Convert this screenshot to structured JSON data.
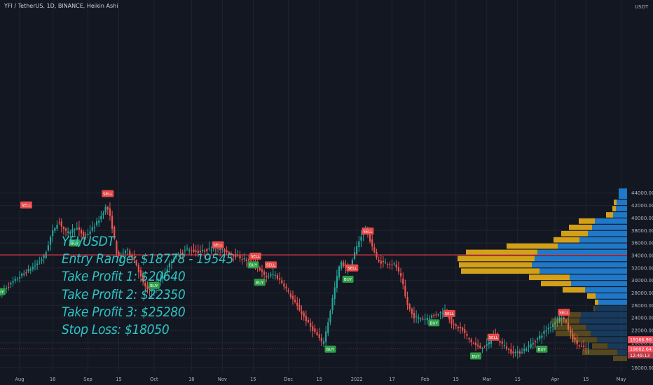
{
  "header": {
    "symbol_title": "YFI / TetherUS, 1D, BINANCE, Heikin Ashi",
    "currency": "USDT"
  },
  "colors": {
    "background": "#131722",
    "grid": "#1f2430",
    "bull": "#26a69a",
    "bear": "#ef5350",
    "profile_yellow": "#d4a017",
    "profile_blue": "#1f78c8",
    "hline": "#f23645",
    "overlay_text": "#2ec4c4",
    "buy_badge": "#2e9e48",
    "sell_badge": "#e64a4a"
  },
  "overlay_text": [
    "YFI/USDT",
    "Entry Range: $18778 - 19545",
    "Take Profit 1: $20640",
    "Take Profit 2: $22350",
    "Take Profit 3: $25280",
    "Stop Loss: $18050"
  ],
  "chart_data": {
    "type": "candlestick",
    "chart_style": "Heikin Ashi",
    "y_axis": {
      "range": [
        15600,
        44800
      ],
      "ticks": [
        16000,
        18000,
        20000,
        22000,
        24000,
        26000,
        28000,
        30000,
        32000,
        34000,
        36000,
        38000,
        40000,
        42000,
        44000
      ],
      "tick_labels": [
        "16000.00",
        "18000.00",
        "20000.00",
        "22000.00",
        "24000.00",
        "26000.00",
        "28000.00",
        "30000.00",
        "32000.00",
        "34000.00",
        "36000.00",
        "38000.00",
        "40000.00",
        "42000.00",
        "44000.00"
      ]
    },
    "x_axis": {
      "ticks": [
        {
          "label": "Aug",
          "day": 0
        },
        {
          "label": "16",
          "day": 15
        },
        {
          "label": "Sep",
          "day": 31
        },
        {
          "label": "15",
          "day": 45
        },
        {
          "label": "Oct",
          "day": 61
        },
        {
          "label": "18",
          "day": 78
        },
        {
          "label": "Nov",
          "day": 92
        },
        {
          "label": "15",
          "day": 106
        },
        {
          "label": "Dec",
          "day": 122
        },
        {
          "label": "15",
          "day": 136
        },
        {
          "label": "2022",
          "day": 153
        },
        {
          "label": "17",
          "day": 169
        },
        {
          "label": "Feb",
          "day": 184
        },
        {
          "label": "15",
          "day": 198
        },
        {
          "label": "Mar",
          "day": 212
        },
        {
          "label": "15",
          "day": 226
        },
        {
          "label": "Apr",
          "day": 243
        },
        {
          "label": "15",
          "day": 257
        },
        {
          "label": "May",
          "day": 273
        }
      ]
    },
    "price_path": [
      [
        -9,
        27800
      ],
      [
        0,
        30500
      ],
      [
        8,
        32500
      ],
      [
        12,
        34000
      ],
      [
        15,
        37500
      ],
      [
        18,
        39500
      ],
      [
        22,
        37500
      ],
      [
        26,
        38500
      ],
      [
        30,
        37000
      ],
      [
        34,
        38500
      ],
      [
        37,
        40000
      ],
      [
        40,
        42000
      ],
      [
        42,
        39500
      ],
      [
        45,
        33500
      ],
      [
        49,
        35000
      ],
      [
        53,
        33000
      ],
      [
        56,
        30000
      ],
      [
        59,
        28200
      ],
      [
        62,
        28800
      ],
      [
        66,
        31000
      ],
      [
        70,
        33500
      ],
      [
        76,
        35000
      ],
      [
        82,
        34500
      ],
      [
        88,
        35200
      ],
      [
        93,
        34800
      ],
      [
        98,
        34000
      ],
      [
        103,
        33300
      ],
      [
        108,
        32500
      ],
      [
        112,
        30500
      ],
      [
        116,
        31000
      ],
      [
        120,
        29500
      ],
      [
        124,
        27200
      ],
      [
        128,
        25000
      ],
      [
        132,
        22800
      ],
      [
        136,
        21000
      ],
      [
        138,
        19700
      ],
      [
        140,
        22500
      ],
      [
        143,
        28000
      ],
      [
        146,
        33000
      ],
      [
        150,
        31500
      ],
      [
        153,
        35000
      ],
      [
        157,
        38500
      ],
      [
        160,
        36000
      ],
      [
        163,
        33000
      ],
      [
        167,
        32800
      ],
      [
        171,
        32500
      ],
      [
        174,
        30000
      ],
      [
        176,
        26500
      ],
      [
        179,
        24200
      ],
      [
        184,
        23800
      ],
      [
        189,
        24500
      ],
      [
        194,
        25200
      ],
      [
        197,
        22800
      ],
      [
        201,
        22200
      ],
      [
        205,
        20300
      ],
      [
        209,
        19200
      ],
      [
        213,
        19600
      ],
      [
        215,
        21400
      ],
      [
        219,
        20000
      ],
      [
        223,
        18600
      ],
      [
        227,
        18400
      ],
      [
        231,
        19300
      ],
      [
        235,
        20500
      ],
      [
        239,
        21900
      ],
      [
        243,
        23200
      ],
      [
        246,
        24200
      ],
      [
        248,
        23600
      ],
      [
        250,
        21800
      ],
      [
        253,
        20000
      ],
      [
        256,
        19200
      ],
      [
        258,
        19000
      ]
    ],
    "highlighted_level": 34100,
    "current_price": {
      "value": 19166.9,
      "label": "19166.90"
    },
    "secondary_price": {
      "value": 19002.64,
      "label": "19002.64"
    },
    "countdown": {
      "label": "12:49:13"
    },
    "signals": [
      {
        "type": "SELL",
        "day": 3,
        "price": 42100
      },
      {
        "type": "SELL",
        "day": 40,
        "price": 43900
      },
      {
        "type": "BUY",
        "day": 25,
        "price": 36000
      },
      {
        "type": "BUY",
        "day": -9,
        "price": 28200
      },
      {
        "type": "BUY",
        "day": 61,
        "price": 29200
      },
      {
        "type": "SELL",
        "day": 90,
        "price": 35700
      },
      {
        "type": "SELL",
        "day": 107,
        "price": 33900
      },
      {
        "type": "SELL",
        "day": 114,
        "price": 32500
      },
      {
        "type": "BUY",
        "day": 106,
        "price": 32500
      },
      {
        "type": "BUY",
        "day": 109,
        "price": 29700
      },
      {
        "type": "SELL",
        "day": 158,
        "price": 37900
      },
      {
        "type": "SELL",
        "day": 151,
        "price": 32000
      },
      {
        "type": "BUY",
        "day": 149,
        "price": 30200
      },
      {
        "type": "BUY",
        "day": 141,
        "price": 19000
      },
      {
        "type": "SELL",
        "day": 195,
        "price": 24700
      },
      {
        "type": "BUY",
        "day": 188,
        "price": 23200
      },
      {
        "type": "SELL",
        "day": 215,
        "price": 20900
      },
      {
        "type": "BUY",
        "day": 207,
        "price": 17900
      },
      {
        "type": "BUY",
        "day": 237,
        "price": 19000
      },
      {
        "type": "SELL",
        "day": 247,
        "price": 24900
      }
    ],
    "volume_profile": [
      {
        "low": 43000,
        "high": 44800,
        "yellow": 0,
        "blue": 12
      },
      {
        "low": 42000,
        "high": 43000,
        "yellow": 4,
        "blue": 15
      },
      {
        "low": 41000,
        "high": 42000,
        "yellow": 5,
        "blue": 16
      },
      {
        "low": 40000,
        "high": 41000,
        "yellow": 10,
        "blue": 20
      },
      {
        "low": 39000,
        "high": 40000,
        "yellow": 23,
        "blue": 46
      },
      {
        "low": 38000,
        "high": 39000,
        "yellow": 33,
        "blue": 50
      },
      {
        "low": 37000,
        "high": 38000,
        "yellow": 38,
        "blue": 56
      },
      {
        "low": 36000,
        "high": 37000,
        "yellow": 37,
        "blue": 68
      },
      {
        "low": 35000,
        "high": 36000,
        "yellow": 73,
        "blue": 99
      },
      {
        "low": 34000,
        "high": 35000,
        "yellow": 102,
        "blue": 128
      },
      {
        "low": 33000,
        "high": 34000,
        "yellow": 110,
        "blue": 132
      },
      {
        "low": 32000,
        "high": 33000,
        "yellow": 104,
        "blue": 136
      },
      {
        "low": 31000,
        "high": 32000,
        "yellow": 112,
        "blue": 125
      },
      {
        "low": 30000,
        "high": 31000,
        "yellow": 58,
        "blue": 82
      },
      {
        "low": 29000,
        "high": 30000,
        "yellow": 43,
        "blue": 80
      },
      {
        "low": 28000,
        "high": 29000,
        "yellow": 32,
        "blue": 60
      },
      {
        "low": 27000,
        "high": 28000,
        "yellow": 12,
        "blue": 45
      },
      {
        "low": 26000,
        "high": 27000,
        "yellow": 5,
        "blue": 41
      },
      {
        "low": 25000,
        "high": 26000,
        "yellow": 2,
        "blue": 46
      },
      {
        "low": 24000,
        "high": 25000,
        "yellow": 18,
        "blue": 66
      },
      {
        "low": 23000,
        "high": 24000,
        "yellow": 40,
        "blue": 68
      },
      {
        "low": 22000,
        "high": 23000,
        "yellow": 46,
        "blue": 59
      },
      {
        "low": 21000,
        "high": 22000,
        "yellow": 50,
        "blue": 52
      },
      {
        "low": 20000,
        "high": 21000,
        "yellow": 36,
        "blue": 43
      },
      {
        "low": 19000,
        "high": 20000,
        "yellow": 22,
        "blue": 28
      },
      {
        "low": 18000,
        "high": 19000,
        "yellow": 50,
        "blue": 14
      },
      {
        "low": 17000,
        "high": 18000,
        "yellow": 20,
        "blue": 0
      }
    ]
  }
}
